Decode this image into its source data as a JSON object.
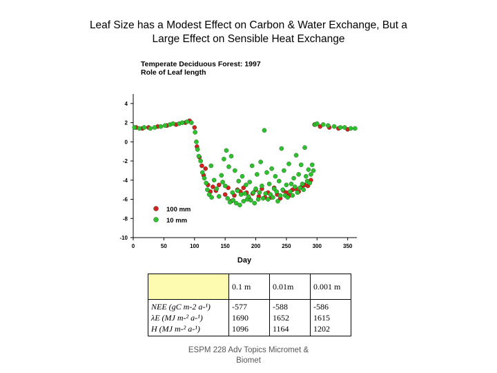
{
  "slide": {
    "title_line1": "Leaf Size has a Modest Effect on Carbon & Water Exchange, But a",
    "title_line2": "Large Effect on Sensible Heat Exchange",
    "footer_line1": "ESPM 228 Adv Topics Micromet &",
    "footer_line2": "Biomet"
  },
  "chart_data": {
    "type": "scatter",
    "title": "Temperate Deciduous Forest: 1997",
    "subtitle": "Role of Leaf length",
    "xlabel": "Day",
    "ylabel": "",
    "xlim": [
      0,
      365
    ],
    "ylim": [
      -10,
      5
    ],
    "xticks": [
      0,
      50,
      100,
      150,
      200,
      250,
      300,
      350
    ],
    "yticks": [
      4,
      2,
      0,
      -2,
      -4,
      -6,
      -8,
      -10
    ],
    "grid": false,
    "legend_position": "bottom-left",
    "series": [
      {
        "name": "100 mm",
        "color": "#d42020",
        "points": [
          [
            5,
            1.5
          ],
          [
            15,
            1.4
          ],
          [
            25,
            1.5
          ],
          [
            40,
            1.6
          ],
          [
            55,
            1.7
          ],
          [
            70,
            1.8
          ],
          [
            85,
            2.0
          ],
          [
            92,
            2.2
          ],
          [
            100,
            1.5
          ],
          [
            104,
            -0.5
          ],
          [
            108,
            -1.6
          ],
          [
            112,
            -2.5
          ],
          [
            115,
            -3.5
          ],
          [
            118,
            -2.8
          ],
          [
            122,
            -4.5
          ],
          [
            126,
            -5.2
          ],
          [
            130,
            -4.7
          ],
          [
            135,
            -5.1
          ],
          [
            140,
            -4.5
          ],
          [
            150,
            -5.5
          ],
          [
            155,
            -4.8
          ],
          [
            160,
            -6.2
          ],
          [
            165,
            -5.6
          ],
          [
            170,
            -5.0
          ],
          [
            175,
            -5.2
          ],
          [
            180,
            -4.8
          ],
          [
            185,
            -5.3
          ],
          [
            190,
            -6.0
          ],
          [
            195,
            -5.4
          ],
          [
            200,
            -5.0
          ],
          [
            205,
            -5.7
          ],
          [
            210,
            -4.9
          ],
          [
            215,
            -5.8
          ],
          [
            220,
            -5.3
          ],
          [
            225,
            -5.8
          ],
          [
            230,
            -4.8
          ],
          [
            235,
            -5.5
          ],
          [
            240,
            -5.9
          ],
          [
            245,
            -5.1
          ],
          [
            250,
            -5.3
          ],
          [
            255,
            -5.6
          ],
          [
            260,
            -5.0
          ],
          [
            265,
            -4.9
          ],
          [
            270,
            -5.2
          ],
          [
            275,
            -4.7
          ],
          [
            280,
            -4.5
          ],
          [
            285,
            -4.6
          ],
          [
            290,
            -4.0
          ],
          [
            296,
            1.8
          ],
          [
            305,
            1.6
          ],
          [
            320,
            1.5
          ],
          [
            335,
            1.4
          ],
          [
            350,
            1.3
          ]
        ]
      },
      {
        "name": "10 mm",
        "color": "#2ec02e",
        "points": [
          [
            2,
            1.5
          ],
          [
            10,
            1.4
          ],
          [
            18,
            1.5
          ],
          [
            28,
            1.4
          ],
          [
            35,
            1.5
          ],
          [
            45,
            1.6
          ],
          [
            52,
            1.7
          ],
          [
            60,
            1.8
          ],
          [
            65,
            1.9
          ],
          [
            75,
            1.9
          ],
          [
            80,
            2.0
          ],
          [
            88,
            2.1
          ],
          [
            95,
            2.0
          ],
          [
            101,
            1.0
          ],
          [
            103,
            0.0
          ],
          [
            105,
            -0.8
          ],
          [
            107,
            -1.5
          ],
          [
            110,
            -2.0
          ],
          [
            113,
            -3.2
          ],
          [
            116,
            -3.8
          ],
          [
            119,
            -4.3
          ],
          [
            121,
            -5.0
          ],
          [
            124,
            -5.5
          ],
          [
            127,
            -2.5
          ],
          [
            128,
            -5.8
          ],
          [
            132,
            -4.0
          ],
          [
            136,
            -4.9
          ],
          [
            140,
            -5.7
          ],
          [
            144,
            -3.5
          ],
          [
            146,
            -4.2
          ],
          [
            148,
            -1.8
          ],
          [
            150,
            -4.6
          ],
          [
            152,
            -0.9
          ],
          [
            154,
            -5.9
          ],
          [
            156,
            -2.6
          ],
          [
            158,
            -6.3
          ],
          [
            160,
            -1.5
          ],
          [
            162,
            -5.3
          ],
          [
            163,
            -6.1
          ],
          [
            166,
            -3.0
          ],
          [
            168,
            -6.4
          ],
          [
            170,
            -5.1
          ],
          [
            172,
            -4.1
          ],
          [
            174,
            -6.6
          ],
          [
            176,
            -5.5
          ],
          [
            178,
            -3.6
          ],
          [
            180,
            -6.2
          ],
          [
            182,
            -5.4
          ],
          [
            184,
            -4.5
          ],
          [
            186,
            -6.0
          ],
          [
            188,
            -5.7
          ],
          [
            190,
            -4.2
          ],
          [
            192,
            -6.1
          ],
          [
            194,
            -2.5
          ],
          [
            196,
            -5.3
          ],
          [
            198,
            -6.4
          ],
          [
            200,
            -4.9
          ],
          [
            202,
            -3.4
          ],
          [
            204,
            -6.0
          ],
          [
            206,
            -5.3
          ],
          [
            208,
            -2.1
          ],
          [
            210,
            -4.6
          ],
          [
            212,
            -5.9
          ],
          [
            214,
            1.2
          ],
          [
            216,
            -5.4
          ],
          [
            218,
            -3.2
          ],
          [
            220,
            -6.0
          ],
          [
            222,
            -4.4
          ],
          [
            224,
            -5.5
          ],
          [
            226,
            -2.8
          ],
          [
            228,
            -5.8
          ],
          [
            230,
            -4.9
          ],
          [
            232,
            -3.6
          ],
          [
            234,
            -5.2
          ],
          [
            236,
            -6.2
          ],
          [
            238,
            -4.1
          ],
          [
            240,
            -5.6
          ],
          [
            242,
            -0.7
          ],
          [
            244,
            -5.0
          ],
          [
            246,
            -3.0
          ],
          [
            248,
            -5.6
          ],
          [
            250,
            -4.5
          ],
          [
            252,
            -5.8
          ],
          [
            254,
            -2.3
          ],
          [
            256,
            -5.2
          ],
          [
            258,
            -4.4
          ],
          [
            260,
            -5.6
          ],
          [
            262,
            -3.8
          ],
          [
            264,
            -4.7
          ],
          [
            266,
            -1.4
          ],
          [
            268,
            -5.3
          ],
          [
            270,
            -3.4
          ],
          [
            272,
            -4.8
          ],
          [
            274,
            -2.4
          ],
          [
            276,
            -4.4
          ],
          [
            278,
            -5.0
          ],
          [
            280,
            -0.6
          ],
          [
            282,
            -3.6
          ],
          [
            284,
            -4.1
          ],
          [
            286,
            -2.9
          ],
          [
            288,
            -4.3
          ],
          [
            290,
            -3.4
          ],
          [
            292,
            -2.4
          ],
          [
            294,
            -3.0
          ],
          [
            297,
            1.8
          ],
          [
            300,
            1.9
          ],
          [
            310,
            1.8
          ],
          [
            318,
            1.7
          ],
          [
            328,
            1.6
          ],
          [
            338,
            1.5
          ],
          [
            345,
            1.5
          ],
          [
            355,
            1.4
          ],
          [
            362,
            1.4
          ]
        ]
      }
    ]
  },
  "table": {
    "headers": [
      "",
      "0.1 m",
      "0.01m",
      "0.001 m"
    ],
    "row_labels": [
      "NEE (gC m-2 a-¹)",
      "λE (MJ m-² a-¹)",
      "H (MJ m-² a-¹)"
    ],
    "columns": [
      [
        "-577",
        "1690",
        "1096"
      ],
      [
        "-588",
        "1652",
        "1164"
      ],
      [
        "-586",
        "1615",
        "1202"
      ]
    ]
  }
}
